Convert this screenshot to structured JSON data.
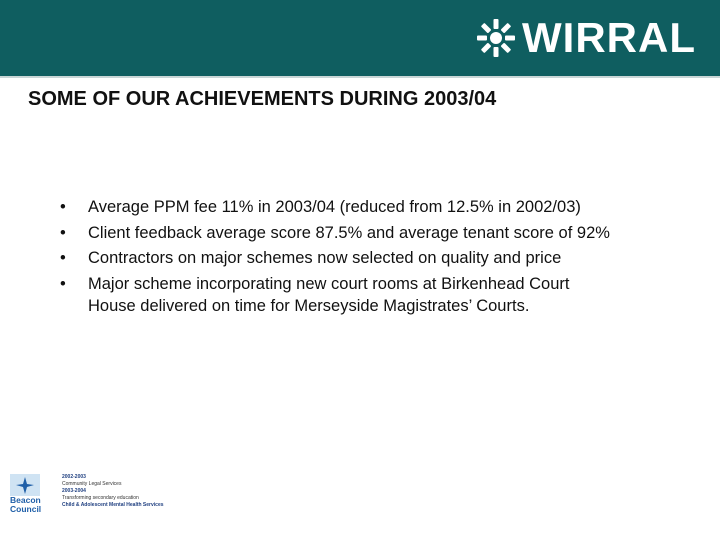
{
  "header": {
    "logo": "WIRRAL"
  },
  "title": "SOME OF OUR ACHIEVEMENTS DURING 2003/04",
  "bullets": [
    "Average PPM fee 11% in 2003/04 (reduced from 12.5% in 2002/03)",
    "Client feedback average score 87.5% and average tenant score of 92%",
    "Contractors on major schemes now selected on quality and price",
    "Major scheme incorporating new court rooms at Birkenhead Court House delivered on time for Merseyside Magistrates’ Courts."
  ],
  "footer": {
    "badge": [
      "Beacon",
      "Council"
    ],
    "lines": [
      "2002-2003",
      "Community Legal Services",
      "2003-2004",
      "Transforming secondary education",
      "Child & Adolescent Mental Health Services"
    ]
  }
}
